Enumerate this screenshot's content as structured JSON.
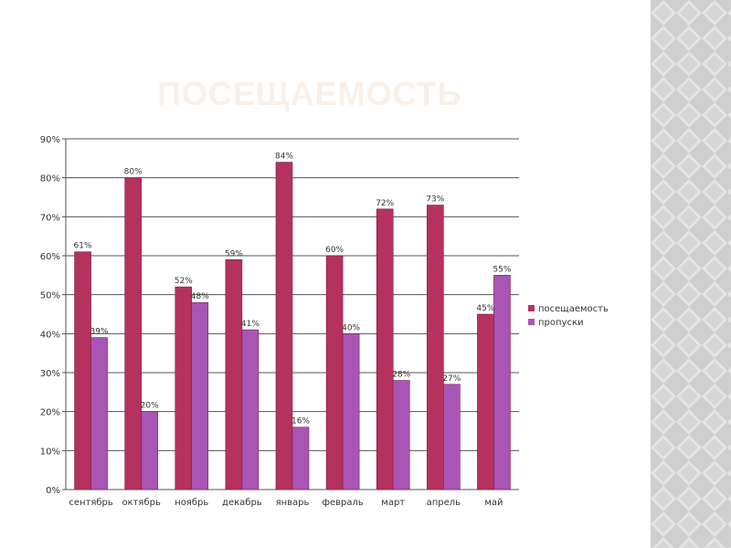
{
  "slide": {
    "title": "ПОСЕЩАЕМОСТЬ"
  },
  "chart_data": {
    "type": "bar",
    "title": "",
    "xlabel": "",
    "ylabel": "",
    "categories": [
      "сентябрь",
      "октябрь",
      "ноябрь",
      "декабрь",
      "январь",
      "февраль",
      "март",
      "апрель",
      "май"
    ],
    "series": [
      {
        "name": "посещаемость",
        "color": "#b5325f",
        "values": [
          61,
          80,
          52,
          59,
          84,
          60,
          72,
          73,
          45
        ],
        "labels": [
          "61%",
          "80%",
          "52%",
          "59%",
          "84%",
          "60%",
          "72%",
          "73%",
          "45%"
        ]
      },
      {
        "name": "пропуски",
        "color": "#a955b5",
        "values": [
          39,
          20,
          48,
          41,
          16,
          40,
          28,
          27,
          55
        ],
        "labels": [
          "39%",
          "20%",
          "48%",
          "41%",
          "16%",
          "40%",
          "28%",
          "27%",
          "55%"
        ]
      }
    ],
    "ylim": [
      0,
      90
    ],
    "yticks": [
      0,
      10,
      20,
      30,
      40,
      50,
      60,
      70,
      80,
      90
    ],
    "ytick_labels": [
      "0%",
      "10%",
      "20%",
      "30%",
      "40%",
      "50%",
      "60%",
      "70%",
      "80%",
      "90%"
    ],
    "grid": true,
    "legend_position": "right"
  }
}
